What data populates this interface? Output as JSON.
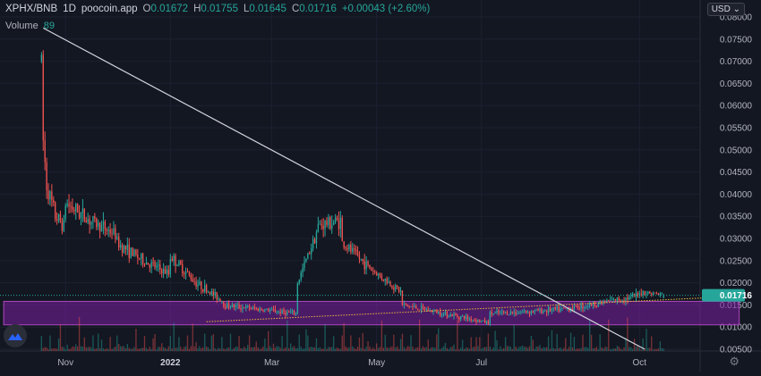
{
  "header": {
    "symbol": "XPHX/BNB",
    "interval": "1D",
    "source": "poocoin.app",
    "o_label": "O",
    "o_value": "0.01672",
    "h_label": "H",
    "h_value": "0.01755",
    "l_label": "L",
    "l_value": "0.01645",
    "c_label": "C",
    "c_value": "0.01716",
    "change": "+0.00043 (+2.60%)"
  },
  "volume_legend": {
    "label": "Volume",
    "value": "89"
  },
  "currency": {
    "label": "USD",
    "icon": "chevron-down-icon"
  },
  "price_axis": {
    "ticks": [
      "0.08000",
      "0.07500",
      "0.07000",
      "0.06500",
      "0.06000",
      "0.05500",
      "0.05000",
      "0.04500",
      "0.04000",
      "0.03500",
      "0.03000",
      "0.02500",
      "0.02000",
      "0.01500",
      "0.01000",
      "0.00500"
    ],
    "last_price_label": "0.01716"
  },
  "time_axis": {
    "ticks": [
      {
        "label": "Nov",
        "bold": false
      },
      {
        "label": "2022",
        "bold": true
      },
      {
        "label": "Mar",
        "bold": false
      },
      {
        "label": "May",
        "bold": false
      },
      {
        "label": "Jul",
        "bold": false
      },
      {
        "label": "Oct",
        "bold": false
      }
    ]
  },
  "colors": {
    "background": "#131722",
    "up": "#26a69a",
    "down": "#ef5350",
    "box_fill": "#7b1fa2",
    "box_stroke": "#ab47bc",
    "trendline": "#d1d4dc",
    "support_line": "#e8b93c",
    "last_price_line": "#26a69a"
  },
  "icons": {
    "logo": "tradingview-logo-icon",
    "settings": "gear-icon"
  },
  "chart_data": {
    "type": "candlestick",
    "series_segments": [
      {
        "from": "2021-10-18",
        "to": "2021-10-20",
        "values": [
          0.07,
          0.052,
          0.047
        ]
      },
      {
        "from": "2021-10-21",
        "to": "2021-10-31",
        "values": [
          0.042,
          0.035,
          0.033
        ]
      },
      {
        "from": "2021-11-01",
        "to": "2021-11-30",
        "values": [
          0.038,
          0.034,
          0.031
        ]
      },
      {
        "from": "2021-12-01",
        "to": "2021-12-31",
        "values": [
          0.029,
          0.025,
          0.022
        ]
      },
      {
        "from": "2022-01-01",
        "to": "2022-01-31",
        "values": [
          0.026,
          0.02,
          0.016
        ]
      },
      {
        "from": "2022-02-01",
        "to": "2022-03-15",
        "values": [
          0.015,
          0.014,
          0.013
        ]
      },
      {
        "from": "2022-03-16",
        "to": "2022-04-10",
        "values": [
          0.02,
          0.033,
          0.034
        ]
      },
      {
        "from": "2022-04-11",
        "to": "2022-05-15",
        "values": [
          0.029,
          0.023,
          0.018
        ]
      },
      {
        "from": "2022-05-16",
        "to": "2022-07-05",
        "values": [
          0.015,
          0.013,
          0.011
        ]
      },
      {
        "from": "2022-07-06",
        "to": "2022-09-30",
        "values": [
          0.013,
          0.014,
          0.017
        ]
      },
      {
        "from": "2022-10-01",
        "to": "2022-10-15",
        "values": [
          0.018,
          0.0172
        ]
      }
    ],
    "last_close": 0.01716,
    "trendline": {
      "from_date": "2021-10-19",
      "from_price": 0.0775,
      "to_date": "2022-10-04",
      "to_price": 0.005
    },
    "support_line": {
      "from_date": "2022-01-22",
      "from_price": 0.0112,
      "to_date": "2022-11-30",
      "to_price": 0.017
    },
    "range_box": {
      "from_date": "2021-09-26",
      "to_date": "2022-11-28",
      "top": 0.0158,
      "bottom": 0.0105
    },
    "ylim": [
      0.005,
      0.08
    ],
    "xlim": [
      "2021-09-15",
      "2022-12-31"
    ]
  }
}
